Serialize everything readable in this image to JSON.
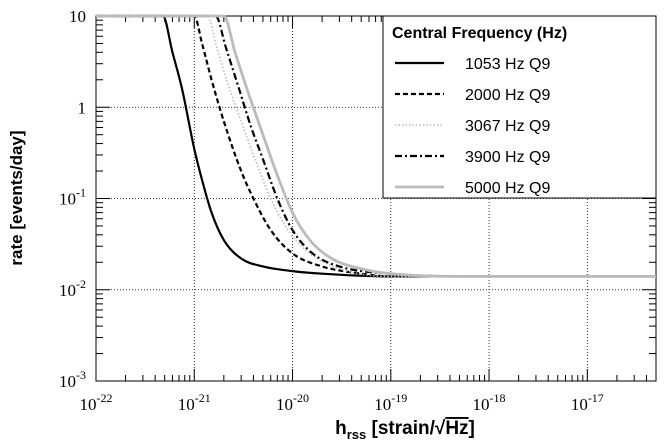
{
  "chart_data": {
    "type": "line",
    "title": "",
    "xlabel": "h",
    "xlabel_sub": "rss",
    "xlabel_unit_prefix": " [strain/",
    "xlabel_unit_sqrt": "√",
    "xlabel_unit_radicand": "Hz",
    "xlabel_unit_suffix": "]",
    "ylabel": "rate  [events/day]",
    "x_scale": "log",
    "y_scale": "log",
    "xlim": [
      1e-22,
      5e-17
    ],
    "ylim": [
      0.001,
      10
    ],
    "x_ticks": [
      {
        "value": 1e-22,
        "base": "10",
        "exp": "-22"
      },
      {
        "value": 1e-21,
        "base": "10",
        "exp": "-21"
      },
      {
        "value": 1e-20,
        "base": "10",
        "exp": "-20"
      },
      {
        "value": 1e-19,
        "base": "10",
        "exp": "-19"
      },
      {
        "value": 1e-18,
        "base": "10",
        "exp": "-18"
      },
      {
        "value": 1e-17,
        "base": "10",
        "exp": "-17"
      }
    ],
    "y_ticks": [
      {
        "value": 0.001,
        "base": "10",
        "exp": "-3"
      },
      {
        "value": 0.01,
        "base": "10",
        "exp": "-2"
      },
      {
        "value": 0.1,
        "base": "10",
        "exp": "-1"
      },
      {
        "value": 1,
        "base": "1",
        "exp": ""
      },
      {
        "value": 10,
        "base": "10",
        "exp": ""
      }
    ],
    "grid": true,
    "legend": {
      "title": "Central Frequency (Hz)",
      "position": "top-right"
    },
    "series": [
      {
        "name": "1053 Hz Q9",
        "color": "#000000",
        "dash": "solid",
        "x": [
          1e-22,
          4.8e-22,
          6e-22,
          7.5e-22,
          1e-21,
          1.2e-21,
          1.5e-21,
          2e-21,
          3e-21,
          5e-21,
          1e-20,
          2e-20,
          1e-19,
          1e-18,
          5e-17
        ],
        "y": [
          10,
          10,
          4,
          1.6,
          0.35,
          0.16,
          0.07,
          0.035,
          0.022,
          0.018,
          0.016,
          0.015,
          0.014,
          0.014,
          0.014
        ]
      },
      {
        "name": "2000 Hz Q9",
        "color": "#000000",
        "dash": "dashed",
        "x": [
          1e-22,
          1e-21,
          1.2e-21,
          1.5e-21,
          2e-21,
          3e-21,
          4e-21,
          6e-21,
          1e-20,
          2e-20,
          5e-20,
          1e-19,
          1e-18,
          5e-17
        ],
        "y": [
          10,
          10,
          5,
          2,
          0.7,
          0.2,
          0.1,
          0.045,
          0.025,
          0.018,
          0.015,
          0.014,
          0.014,
          0.014
        ]
      },
      {
        "name": "3067 Hz Q9",
        "color": "#bbbbbb",
        "dash": "dotted",
        "x": [
          1e-22,
          1.35e-21,
          1.7e-21,
          2.2e-21,
          3e-21,
          4e-21,
          6e-21,
          9e-21,
          1.5e-20,
          3e-20,
          1e-19,
          1e-18,
          5e-17
        ],
        "y": [
          10,
          10,
          4.5,
          1.8,
          0.7,
          0.3,
          0.1,
          0.045,
          0.025,
          0.017,
          0.014,
          0.014,
          0.014
        ]
      },
      {
        "name": "3900 Hz Q9",
        "color": "#000000",
        "dash": "dashdot",
        "x": [
          1e-22,
          1.65e-21,
          2.1e-21,
          2.8e-21,
          3.8e-21,
          5e-21,
          7e-21,
          1e-20,
          1.6e-20,
          3e-20,
          1e-19,
          1e-18,
          5e-17
        ],
        "y": [
          10,
          10,
          4.5,
          1.7,
          0.6,
          0.27,
          0.1,
          0.045,
          0.025,
          0.018,
          0.015,
          0.014,
          0.014
        ]
      },
      {
        "name": "5000 Hz Q9",
        "color": "#bbbbbb",
        "dash": "solid-thick",
        "x": [
          1e-22,
          2e-21,
          2.6e-21,
          3.5e-21,
          5e-21,
          7e-21,
          1e-20,
          1.5e-20,
          2.5e-20,
          5e-20,
          1e-19,
          1e-18,
          5e-17
        ],
        "y": [
          10,
          10,
          4,
          1.5,
          0.5,
          0.18,
          0.07,
          0.035,
          0.022,
          0.017,
          0.015,
          0.014,
          0.014
        ]
      }
    ]
  }
}
